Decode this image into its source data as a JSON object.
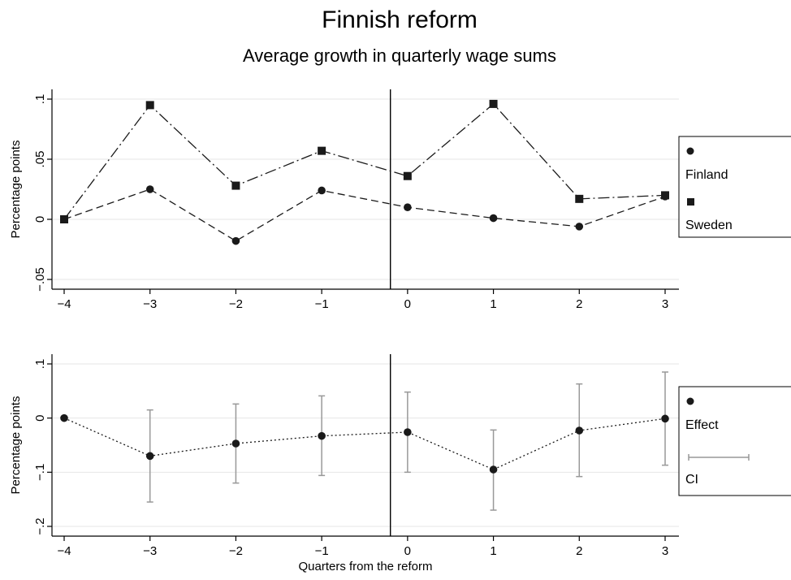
{
  "title": "Finnish reform",
  "subtitle": "Average growth in quarterly wage sums",
  "chart_data": [
    {
      "type": "line",
      "panel": "top",
      "x": [
        -4,
        -3,
        -2,
        -1,
        0,
        1,
        2,
        3
      ],
      "x_tick_labels": [
        "−4",
        "−3",
        "−2",
        "−1",
        "0",
        "1",
        "2",
        "3"
      ],
      "xlim": [
        -4,
        3
      ],
      "ylim": [
        -0.05,
        0.1
      ],
      "y_ticks": [
        -0.05,
        0,
        0.05,
        0.1
      ],
      "y_tick_labels": [
        "−.05",
        "0",
        ".05",
        ".1"
      ],
      "ylabel": "Percentage points",
      "xlabel": "",
      "grid": true,
      "reference_line_x": -0.2,
      "legend_position": "right",
      "series": [
        {
          "name": "Finland",
          "marker": "circle",
          "line": "dashed",
          "color": "#1a1a1a",
          "values": [
            0.0,
            0.025,
            -0.018,
            0.024,
            0.01,
            0.001,
            -0.006,
            0.019
          ]
        },
        {
          "name": "Sweden",
          "marker": "square",
          "line": "dash-dot",
          "color": "#1a1a1a",
          "values": [
            0.0,
            0.095,
            0.028,
            0.057,
            0.036,
            0.096,
            0.017,
            0.02
          ]
        }
      ]
    },
    {
      "type": "line",
      "panel": "bottom",
      "x": [
        -4,
        -3,
        -2,
        -1,
        0,
        1,
        2,
        3
      ],
      "x_tick_labels": [
        "−4",
        "−3",
        "−2",
        "−1",
        "0",
        "1",
        "2",
        "3"
      ],
      "xlim": [
        -4,
        3
      ],
      "ylim": [
        -0.2,
        0.1
      ],
      "y_ticks": [
        -0.2,
        -0.1,
        0,
        0.1
      ],
      "y_tick_labels": [
        "−.2",
        "−.1",
        "0",
        ".1"
      ],
      "ylabel": "Percentage points",
      "xlabel": "Quarters from the reform",
      "grid": true,
      "reference_line_x": -0.2,
      "legend_position": "right",
      "series": [
        {
          "name": "Effect",
          "marker": "circle",
          "line": "dotted",
          "color": "#1a1a1a",
          "values": [
            0.0,
            -0.07,
            -0.047,
            -0.033,
            -0.026,
            -0.095,
            -0.023,
            -0.001
          ]
        },
        {
          "name": "CI",
          "type": "errorbar",
          "color": "#999999",
          "low": [
            null,
            -0.155,
            -0.12,
            -0.106,
            -0.1,
            -0.17,
            -0.108,
            -0.087
          ],
          "high": [
            null,
            0.015,
            0.026,
            0.041,
            0.048,
            -0.022,
            0.063,
            0.085
          ]
        }
      ]
    }
  ]
}
